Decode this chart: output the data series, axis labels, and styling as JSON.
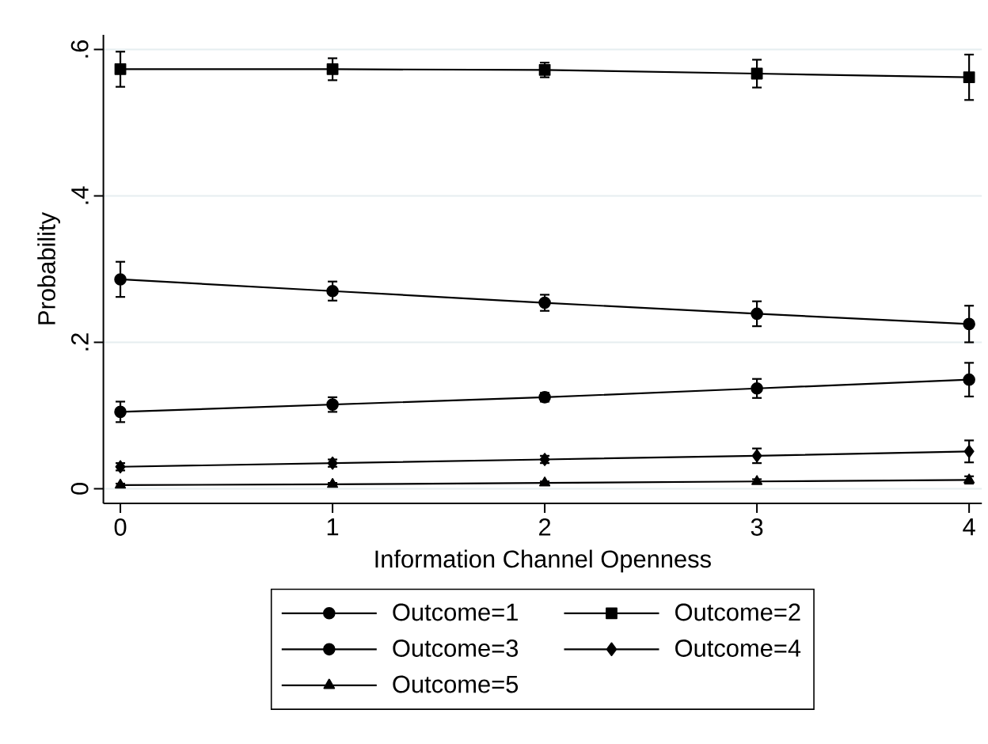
{
  "chart_data": {
    "type": "line",
    "xlabel": "Information Channel Openness",
    "ylabel": "Probability",
    "x": [
      0,
      1,
      2,
      3,
      4
    ],
    "xlim": [
      -0.08,
      4.06
    ],
    "xticks": [
      0,
      1,
      2,
      3,
      4
    ],
    "ylim": [
      -0.02,
      0.62
    ],
    "yticks": [
      0,
      {
        "value": 0.2,
        "label": ".2"
      },
      {
        "value": 0.4,
        "label": ".4"
      },
      {
        "value": 0.6,
        "label": ".6"
      }
    ],
    "grid": "y",
    "legend": "bottom",
    "line_style": "solid",
    "series": [
      {
        "name": "Outcome=1",
        "color": "#000000",
        "marker": "circle",
        "values": [
          0.286,
          0.27,
          0.254,
          0.239,
          0.225
        ],
        "errors": [
          0.024,
          0.013,
          0.011,
          0.017,
          0.025
        ]
      },
      {
        "name": "Outcome=2",
        "color": "#000000",
        "marker": "square",
        "values": [
          0.573,
          0.573,
          0.572,
          0.567,
          0.562
        ],
        "errors": [
          0.024,
          0.015,
          0.01,
          0.019,
          0.031
        ]
      },
      {
        "name": "Outcome=3",
        "color": "#000000",
        "marker": "circle",
        "values": [
          0.105,
          0.115,
          0.125,
          0.137,
          0.149
        ],
        "errors": [
          0.014,
          0.01,
          0.006,
          0.013,
          0.023
        ]
      },
      {
        "name": "Outcome=4",
        "color": "#000000",
        "marker": "diamond",
        "values": [
          0.03,
          0.035,
          0.04,
          0.045,
          0.051
        ],
        "errors": [
          0.005,
          0.005,
          0.005,
          0.01,
          0.015
        ]
      },
      {
        "name": "Outcome=5",
        "color": "#000000",
        "marker": "triangle",
        "values": [
          0.005,
          0.006,
          0.008,
          0.01,
          0.012
        ],
        "errors": [
          0.002,
          0.002,
          0.002,
          0.003,
          0.005
        ]
      }
    ]
  }
}
